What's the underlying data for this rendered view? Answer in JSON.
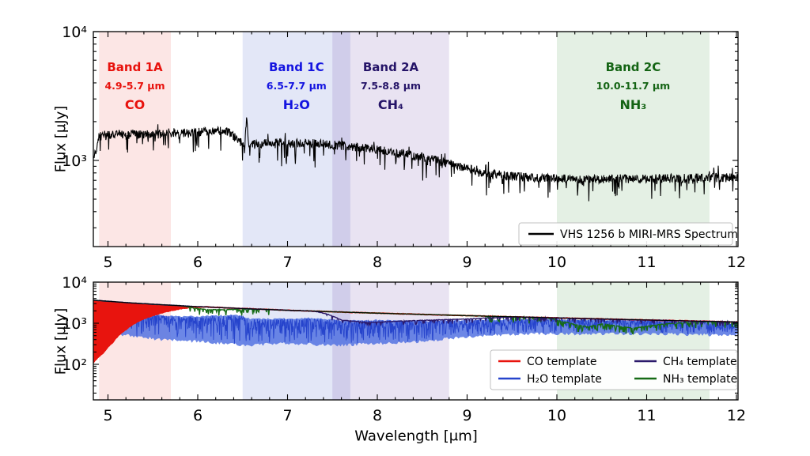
{
  "figure": {
    "background": "#ffffff"
  },
  "chart_data": [
    {
      "id": "spectrum-panel",
      "type": "line",
      "title": "",
      "xlabel": "",
      "ylabel": "Flux [μJy]",
      "xlim": [
        4.837,
        12.018
      ],
      "x_ticks": [
        5,
        6,
        7,
        8,
        9,
        10,
        11,
        12
      ],
      "ylog_lim": [
        2.331,
        4.0
      ],
      "y_ticks": [
        {
          "exp": 3,
          "label": "10³"
        },
        {
          "exp": 4,
          "label": "10⁴"
        }
      ],
      "grid": false,
      "show_band_labels": true,
      "bands": [
        {
          "id": "band-1a",
          "name": "Band 1A",
          "range": "4.9-5.7 μm",
          "molecule": "CO",
          "x0": 4.9,
          "x1": 5.7,
          "fill": "rgba(230,25,20,0.11)",
          "text_color": "#e8120d"
        },
        {
          "id": "band-1c",
          "name": "Band 1C",
          "range": "6.5-7.7 μm",
          "molecule": "H₂O",
          "x0": 6.5,
          "x1": 7.7,
          "fill": "rgba(0,40,180,0.11)",
          "text_color": "#1414e0"
        },
        {
          "id": "band-2a",
          "name": "Band 2A",
          "range": "7.5-8.8 μm",
          "molecule": "CH₄",
          "x0": 7.5,
          "x1": 8.8,
          "fill": "rgba(55,0,137,0.11)",
          "text_color": "#251468"
        },
        {
          "id": "band-2c",
          "name": "Band 2C",
          "range": "10.0-11.7 μm",
          "molecule": "NH₃",
          "x0": 10.0,
          "x1": 11.7,
          "fill": "rgba(10,120,10,0.11)",
          "text_color": "#146414"
        }
      ],
      "series": [
        {
          "name": "VHS 1256 b MIRI-MRS Spectrum",
          "short": "vhs-spectrum",
          "color": "#000000",
          "type": "noisy",
          "seed": 42,
          "n": 1600,
          "lw": 1.1,
          "noise": 0.08,
          "down_spike": {
            "prob": 0.1,
            "depth": 0.3
          },
          "up_spike": {
            "prob": 0.03,
            "depth": 0.15
          },
          "anchors": [
            [
              4.837,
              1020
            ],
            [
              4.9,
              1540
            ],
            [
              5.0,
              1590
            ],
            [
              5.3,
              1610
            ],
            [
              5.6,
              1590
            ],
            [
              5.9,
              1650
            ],
            [
              6.2,
              1690
            ],
            [
              6.33,
              1710
            ],
            [
              6.44,
              1460
            ],
            [
              6.52,
              1320
            ],
            [
              6.545,
              2150
            ],
            [
              6.57,
              1320
            ],
            [
              6.8,
              1380
            ],
            [
              7.1,
              1370
            ],
            [
              7.4,
              1345
            ],
            [
              7.6,
              1310
            ],
            [
              7.9,
              1245
            ],
            [
              8.2,
              1150
            ],
            [
              8.5,
              1060
            ],
            [
              8.8,
              950
            ],
            [
              9.0,
              868
            ],
            [
              9.2,
              800
            ],
            [
              9.5,
              758
            ],
            [
              9.8,
              732
            ],
            [
              10.2,
              716
            ],
            [
              10.6,
              720
            ],
            [
              11.0,
              726
            ],
            [
              11.4,
              730
            ],
            [
              11.8,
              734
            ],
            [
              12.018,
              740
            ]
          ]
        }
      ],
      "legend": {
        "entries": [
          {
            "label": "VHS 1256 b MIRI-MRS Spectrum",
            "color": "#000000"
          }
        ]
      }
    },
    {
      "id": "template-panel",
      "type": "line",
      "title": "",
      "xlabel": "Wavelength [μm]",
      "ylabel": "Flux [μJy]",
      "xlim": [
        4.837,
        12.018
      ],
      "x_ticks": [
        5,
        6,
        7,
        8,
        9,
        10,
        11,
        12
      ],
      "ylog_lim": [
        1.135,
        4.0
      ],
      "y_ticks": [
        {
          "exp": 2,
          "label": "10²"
        },
        {
          "exp": 3,
          "label": "10³"
        },
        {
          "exp": 4,
          "label": "10⁴"
        }
      ],
      "grid": false,
      "show_band_labels": false,
      "bands": [
        {
          "id": "band-1a-lower",
          "name": "Band 1A",
          "x0": 4.9,
          "x1": 5.7,
          "fill": "rgba(230,25,20,0.11)"
        },
        {
          "id": "band-1c-lower",
          "name": "Band 1C",
          "x0": 6.5,
          "x1": 7.7,
          "fill": "rgba(0,40,180,0.11)"
        },
        {
          "id": "band-2a-lower",
          "name": "Band 2A",
          "x0": 7.5,
          "x1": 8.8,
          "fill": "rgba(55,0,137,0.11)"
        },
        {
          "id": "band-2c-lower",
          "name": "Band 2C",
          "x0": 10.0,
          "x1": 11.7,
          "fill": "rgba(10,120,10,0.11)"
        }
      ],
      "continuum_anchors": [
        [
          4.837,
          3650
        ],
        [
          5.2,
          3180
        ],
        [
          5.6,
          2820
        ],
        [
          6.0,
          2540
        ],
        [
          6.5,
          2280
        ],
        [
          7.0,
          2070
        ],
        [
          7.5,
          1900
        ],
        [
          8.0,
          1760
        ],
        [
          8.5,
          1640
        ],
        [
          9.0,
          1530
        ],
        [
          9.5,
          1435
        ],
        [
          10.0,
          1350
        ],
        [
          10.5,
          1270
        ],
        [
          11.0,
          1200
        ],
        [
          11.5,
          1135
        ],
        [
          12.018,
          1070
        ]
      ],
      "series": [
        {
          "name": "H₂O template",
          "short": "h2o-template",
          "color": "#2644cc",
          "fill_color": "#5272e2",
          "type": "band",
          "seed": 101,
          "n": 1600,
          "lw": 0.9,
          "upper": [
            [
              4.837,
              1500
            ],
            [
              5.0,
              1850
            ],
            [
              5.2,
              1750
            ],
            [
              5.5,
              1600
            ],
            [
              5.8,
              1450
            ],
            [
              6.1,
              1500
            ],
            [
              6.45,
              1600
            ],
            [
              6.6,
              1250
            ],
            [
              7.0,
              1300
            ],
            [
              7.3,
              1350
            ],
            [
              7.6,
              1150
            ],
            [
              8.0,
              1200
            ],
            [
              8.5,
              1150
            ],
            [
              9.0,
              1180
            ],
            [
              9.5,
              1250
            ],
            [
              10.0,
              1250
            ],
            [
              10.5,
              1200
            ],
            [
              11.0,
              1180
            ],
            [
              11.5,
              1100
            ],
            [
              12.018,
              1000
            ]
          ],
          "lower": [
            [
              4.837,
              420
            ],
            [
              5.0,
              560
            ],
            [
              5.3,
              480
            ],
            [
              5.6,
              400
            ],
            [
              6.0,
              360
            ],
            [
              6.5,
              290
            ],
            [
              7.0,
              330
            ],
            [
              7.5,
              290
            ],
            [
              8.0,
              320
            ],
            [
              8.5,
              360
            ],
            [
              9.0,
              470
            ],
            [
              9.5,
              540
            ],
            [
              10.0,
              560
            ],
            [
              10.5,
              540
            ],
            [
              11.0,
              560
            ],
            [
              11.5,
              530
            ],
            [
              12.018,
              520
            ]
          ]
        },
        {
          "name": "CO template",
          "short": "co-template",
          "color": "#e8140e",
          "type": "ratio",
          "seed": 55,
          "n": 900,
          "lw": 1.8,
          "noise": 0.015,
          "ratio_anchors": [
            [
              4.837,
              0.03
            ],
            [
              4.95,
              0.055
            ],
            [
              5.05,
              0.1
            ],
            [
              5.2,
              0.22
            ],
            [
              5.35,
              0.38
            ],
            [
              5.5,
              0.53
            ],
            [
              5.65,
              0.69
            ],
            [
              5.8,
              0.84
            ],
            [
              5.95,
              0.95
            ],
            [
              6.08,
              1.0
            ],
            [
              12.018,
              1.0
            ]
          ],
          "fill_zone": [
            4.837,
            6.08
          ]
        },
        {
          "name": "NH₃ template",
          "short": "nh3-template",
          "color": "#166b16",
          "type": "ratio",
          "seed": 77,
          "n": 1100,
          "lw": 1.4,
          "noise": 0.012,
          "ratio_anchors": [
            [
              4.837,
              1
            ],
            [
              5.8,
              1
            ],
            [
              5.95,
              0.92
            ],
            [
              6.1,
              0.86
            ],
            [
              6.3,
              0.9
            ],
            [
              6.5,
              0.96
            ],
            [
              6.7,
              1
            ],
            [
              9.85,
              1
            ],
            [
              10.0,
              0.9
            ],
            [
              10.2,
              0.7
            ],
            [
              10.35,
              0.63
            ],
            [
              10.5,
              0.76
            ],
            [
              10.65,
              0.7
            ],
            [
              10.85,
              0.62
            ],
            [
              11.0,
              0.7
            ],
            [
              11.2,
              0.82
            ],
            [
              11.4,
              0.9
            ],
            [
              11.6,
              0.96
            ],
            [
              11.8,
              1
            ],
            [
              12.018,
              1
            ]
          ],
          "comb": {
            "zones": [
              [
                5.85,
                6.8
              ],
              [
                9.2,
                12.018
              ]
            ],
            "prob": 0.3,
            "depth": 0.3
          }
        },
        {
          "name": "CH₄ template",
          "short": "ch4-template",
          "color": "#2b1a6b",
          "type": "ratio",
          "seed": 88,
          "n": 1100,
          "lw": 1.4,
          "noise": 0.012,
          "ratio_anchors": [
            [
              4.837,
              1
            ],
            [
              7.3,
              1
            ],
            [
              7.45,
              0.86
            ],
            [
              7.6,
              0.64
            ],
            [
              7.9,
              0.58
            ],
            [
              8.2,
              0.65
            ],
            [
              8.6,
              0.74
            ],
            [
              9.0,
              0.83
            ],
            [
              9.3,
              0.93
            ],
            [
              9.55,
              1
            ],
            [
              12.018,
              1
            ]
          ],
          "comb": {
            "zones": [
              [
                7.35,
                12.018
              ]
            ],
            "prob": 0.16,
            "depth": 0.22
          }
        },
        {
          "name": "continuum",
          "short": "continuum",
          "color": "#000000",
          "type": "smooth",
          "seed": 5,
          "n": 200,
          "lw": 1.0
        }
      ],
      "legend": {
        "entries": [
          {
            "label": "CO template",
            "color": "#e8140e"
          },
          {
            "label": "H₂O template",
            "color": "#2644cc"
          },
          {
            "label": "CH₄ template",
            "color": "#2b1a6b"
          },
          {
            "label": "NH₃ template",
            "color": "#166b16"
          }
        ]
      }
    }
  ]
}
